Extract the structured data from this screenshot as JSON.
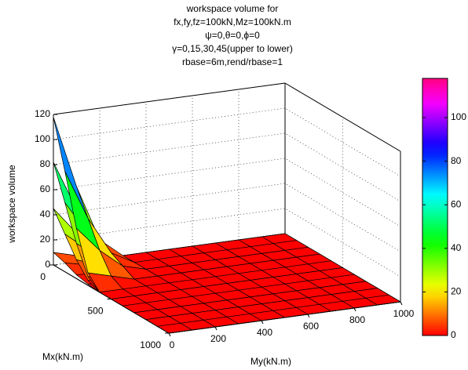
{
  "chart_data": {
    "type": "surface3d",
    "title": [
      "workspace volume for",
      "fx,fy,fz=100kN,Mz=100kN.m",
      "ψ=0,θ=0,ϕ=0",
      "γ=0,15,30,45(upper to lower)",
      "rbase=6m,rend/rbase=1"
    ],
    "xlabel": "My(kN.m)",
    "ylabel": "Mx(kN.m)",
    "zlabel": "workspace volume",
    "x": [
      0,
      100,
      200,
      300,
      400,
      500,
      600,
      700,
      800,
      900,
      1000
    ],
    "y": [
      0,
      100,
      200,
      300,
      400,
      500,
      600,
      700,
      800,
      900,
      1000
    ],
    "xlim": [
      0,
      1000
    ],
    "ylim": [
      0,
      1000
    ],
    "zlim": [
      0,
      120
    ],
    "xticks": [
      0,
      200,
      400,
      600,
      800,
      1000
    ],
    "yticks": [
      0,
      500,
      1000
    ],
    "zticks": [
      0,
      20,
      40,
      60,
      80,
      100,
      120
    ],
    "grid": true,
    "colormap": "hsv",
    "clim": [
      0,
      118
    ],
    "colorbar_ticks": [
      0,
      20,
      40,
      60,
      80,
      100
    ],
    "surfaces": [
      {
        "values": [
          [
            10,
            5,
            1,
            0,
            0,
            0,
            0,
            0,
            0,
            0,
            0
          ],
          [
            7,
            3,
            1,
            0,
            0,
            0,
            0,
            0,
            0,
            0,
            0
          ],
          [
            3,
            2,
            0,
            0,
            0,
            0,
            0,
            0,
            0,
            0,
            0
          ],
          [
            1,
            0,
            0,
            0,
            0,
            0,
            0,
            0,
            0,
            0,
            0
          ],
          [
            0,
            0,
            0,
            0,
            0,
            0,
            0,
            0,
            0,
            0,
            0
          ],
          [
            0,
            0,
            0,
            0,
            0,
            0,
            0,
            0,
            0,
            0,
            0
          ],
          [
            0,
            0,
            0,
            0,
            0,
            0,
            0,
            0,
            0,
            0,
            0
          ],
          [
            0,
            0,
            0,
            0,
            0,
            0,
            0,
            0,
            0,
            0,
            0
          ],
          [
            0,
            0,
            0,
            0,
            0,
            0,
            0,
            0,
            0,
            0,
            0
          ],
          [
            0,
            0,
            0,
            0,
            0,
            0,
            0,
            0,
            0,
            0,
            0
          ],
          [
            0,
            0,
            0,
            0,
            0,
            0,
            0,
            0,
            0,
            0,
            0
          ]
        ]
      },
      {
        "values": [
          [
            45,
            23,
            6,
            0,
            0,
            0,
            0,
            0,
            0,
            0,
            0
          ],
          [
            30,
            15,
            4,
            0,
            0,
            0,
            0,
            0,
            0,
            0,
            0
          ],
          [
            15,
            8,
            2,
            0,
            0,
            0,
            0,
            0,
            0,
            0,
            0
          ],
          [
            4,
            2,
            0,
            0,
            0,
            0,
            0,
            0,
            0,
            0,
            0
          ],
          [
            0,
            0,
            0,
            0,
            0,
            0,
            0,
            0,
            0,
            0,
            0
          ],
          [
            0,
            0,
            0,
            0,
            0,
            0,
            0,
            0,
            0,
            0,
            0
          ],
          [
            0,
            0,
            0,
            0,
            0,
            0,
            0,
            0,
            0,
            0,
            0
          ],
          [
            0,
            0,
            0,
            0,
            0,
            0,
            0,
            0,
            0,
            0,
            0
          ],
          [
            0,
            0,
            0,
            0,
            0,
            0,
            0,
            0,
            0,
            0,
            0
          ],
          [
            0,
            0,
            0,
            0,
            0,
            0,
            0,
            0,
            0,
            0,
            0
          ],
          [
            0,
            0,
            0,
            0,
            0,
            0,
            0,
            0,
            0,
            0,
            0
          ]
        ]
      },
      {
        "values": [
          [
            82,
            42,
            10,
            0,
            0,
            0,
            0,
            0,
            0,
            0,
            0
          ],
          [
            55,
            28,
            7,
            0,
            0,
            0,
            0,
            0,
            0,
            0,
            0
          ],
          [
            28,
            14,
            3,
            0,
            0,
            0,
            0,
            0,
            0,
            0,
            0
          ],
          [
            7,
            3,
            0,
            0,
            0,
            0,
            0,
            0,
            0,
            0,
            0
          ],
          [
            0,
            0,
            0,
            0,
            0,
            0,
            0,
            0,
            0,
            0,
            0
          ],
          [
            0,
            0,
            0,
            0,
            0,
            0,
            0,
            0,
            0,
            0,
            0
          ],
          [
            0,
            0,
            0,
            0,
            0,
            0,
            0,
            0,
            0,
            0,
            0
          ],
          [
            0,
            0,
            0,
            0,
            0,
            0,
            0,
            0,
            0,
            0,
            0
          ],
          [
            0,
            0,
            0,
            0,
            0,
            0,
            0,
            0,
            0,
            0,
            0
          ],
          [
            0,
            0,
            0,
            0,
            0,
            0,
            0,
            0,
            0,
            0,
            0
          ],
          [
            0,
            0,
            0,
            0,
            0,
            0,
            0,
            0,
            0,
            0,
            0
          ]
        ]
      },
      {
        "values": [
          [
            118,
            60,
            15,
            0,
            0,
            0,
            0,
            0,
            0,
            0,
            0
          ],
          [
            80,
            40,
            10,
            0,
            0,
            0,
            0,
            0,
            0,
            0,
            0
          ],
          [
            40,
            20,
            5,
            0,
            0,
            0,
            0,
            0,
            0,
            0,
            0
          ],
          [
            10,
            5,
            0,
            0,
            0,
            0,
            0,
            0,
            0,
            0,
            0
          ],
          [
            0,
            0,
            0,
            0,
            0,
            0,
            0,
            0,
            0,
            0,
            0
          ],
          [
            0,
            0,
            0,
            0,
            0,
            0,
            0,
            0,
            0,
            0,
            0
          ],
          [
            0,
            0,
            0,
            0,
            0,
            0,
            0,
            0,
            0,
            0,
            0
          ],
          [
            0,
            0,
            0,
            0,
            0,
            0,
            0,
            0,
            0,
            0,
            0
          ],
          [
            0,
            0,
            0,
            0,
            0,
            0,
            0,
            0,
            0,
            0,
            0
          ],
          [
            0,
            0,
            0,
            0,
            0,
            0,
            0,
            0,
            0,
            0,
            0
          ],
          [
            0,
            0,
            0,
            0,
            0,
            0,
            0,
            0,
            0,
            0,
            0
          ]
        ]
      }
    ]
  }
}
